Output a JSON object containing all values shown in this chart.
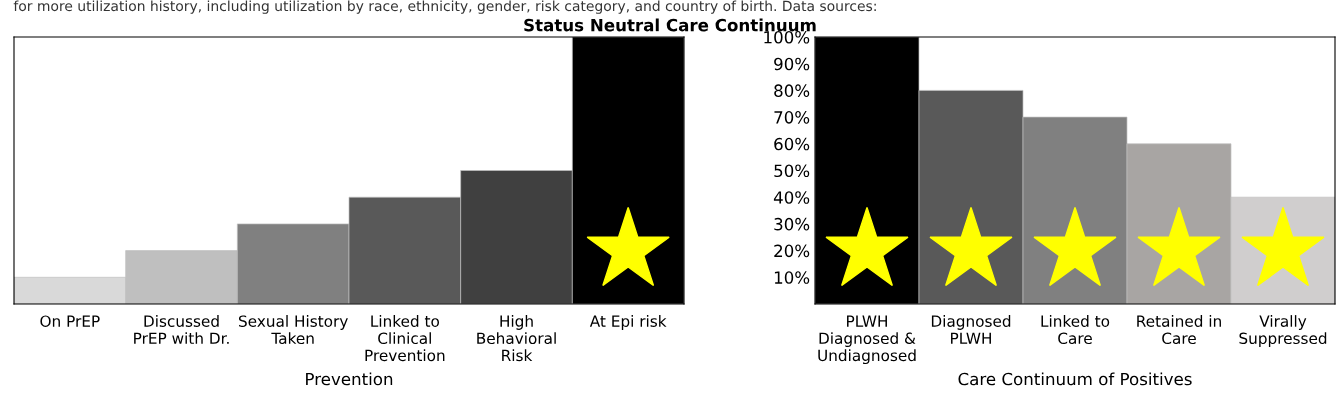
{
  "chart_data": [
    {
      "type": "bar",
      "title": "Status Neutral Care Continuum",
      "xlabel": "Prevention",
      "annotations": [
        "for more utilization history, including utilization by race, ethnicity, gender, risk category, and country of birth. Data sources:"
      ],
      "categories": [
        "On PrEP",
        "Discussed\nPrEP with Dr.",
        "Sexual History\nTaken",
        "Linked to\nClinical\nPrevention",
        "High\nBehavioral\nRisk",
        "At Epi risk"
      ],
      "values": [
        10,
        20,
        30,
        40,
        50,
        100
      ],
      "colors": [
        "#d9d9d9",
        "#bfbfbf",
        "#808080",
        "#595959",
        "#404040",
        "#000000"
      ],
      "ylim": [
        0,
        100
      ],
      "tick_labels": "x",
      "grid": false
    },
    {
      "type": "bar",
      "xlabel": "Care Continuum of Positives",
      "categories": [
        "PLWH\nDiagnosed &\nUndiagnosed",
        "Diagnosed\nPLWH",
        "Linked to\nCare",
        "Retained in\nCare",
        "Virally\nSuppressed"
      ],
      "values": [
        100,
        80,
        70,
        60,
        40
      ],
      "colors": [
        "#000000",
        "#595959",
        "#808080",
        "#a8a5a3",
        "#d0cece"
      ],
      "ylim": [
        0,
        100
      ],
      "yticks": [
        {
          "value": 10,
          "label": "10%"
        },
        {
          "value": 20,
          "label": "20%"
        },
        {
          "value": 30,
          "label": "30%"
        },
        {
          "value": 40,
          "label": "40%"
        },
        {
          "value": 50,
          "label": "50%"
        },
        {
          "value": 60,
          "label": "60%"
        },
        {
          "value": 70,
          "label": "70%"
        },
        {
          "value": 80,
          "label": "80%"
        },
        {
          "value": 90,
          "label": "90%"
        },
        {
          "value": 100,
          "label": "100%"
        }
      ],
      "grid": false
    }
  ]
}
